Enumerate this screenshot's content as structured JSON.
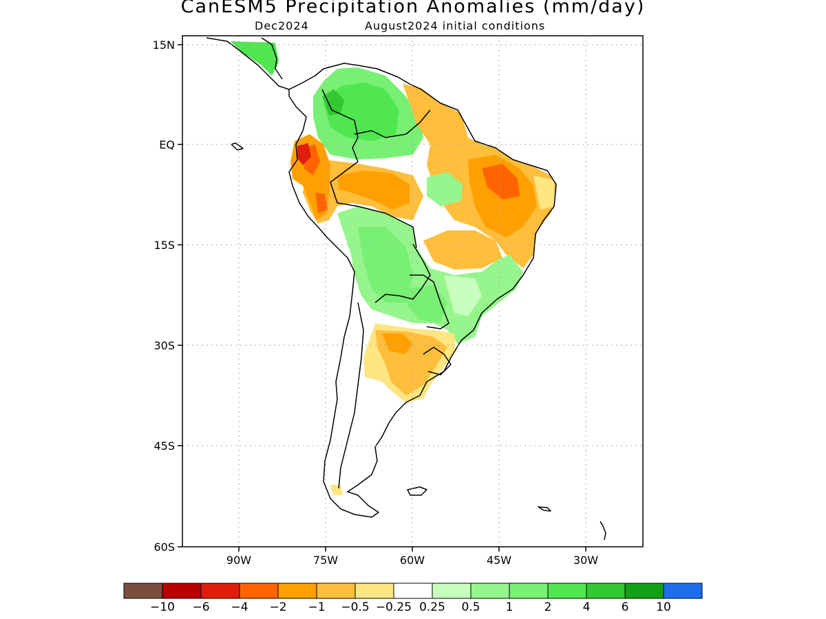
{
  "title": "CanESM5 Precipitation Anomalies (mm/day)",
  "subtitle": {
    "valid": "Dec2024",
    "init": "August2024 initial conditions"
  },
  "lat_ticks": [
    "15N",
    "EQ",
    "15S",
    "30S",
    "45S",
    "60S"
  ],
  "lon_ticks": [
    "90W",
    "75W",
    "60W",
    "45W",
    "30W"
  ],
  "legend": {
    "colors": [
      "#7a4e3f",
      "#b80000",
      "#e01e0c",
      "#ff6400",
      "#ffa000",
      "#ffbe3c",
      "#ffe682",
      "#ffffff",
      "#c8ffbe",
      "#96f58c",
      "#78f073",
      "#50e650",
      "#32c832",
      "#14a014",
      "#1e6eeb"
    ],
    "labels": [
      "−10",
      "−6",
      "−4",
      "−2",
      "−1",
      "−0.5",
      "−0.25",
      "0.25",
      "0.5",
      "1",
      "2",
      "4",
      "6",
      "10"
    ]
  }
}
